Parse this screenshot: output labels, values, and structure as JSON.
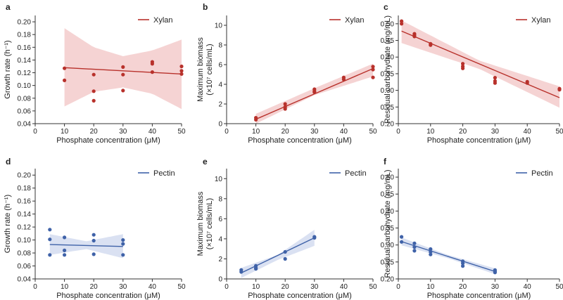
{
  "chart_data": [
    {
      "panel": "a",
      "type": "scatter",
      "series_name": "Xylan",
      "color": "#b8312b",
      "band_color": "#f2c4c4",
      "xlabel": "Phosphate concentration (μM)",
      "ylabel": "Growth rate (h⁻¹)",
      "xlim": [
        0,
        50
      ],
      "ylim": [
        0.04,
        0.21
      ],
      "xticks": [
        "0",
        "10",
        "20",
        "30",
        "40",
        "50"
      ],
      "yticks": [
        "0.04",
        "0.06",
        "0.08",
        "0.10",
        "0.12",
        "0.14",
        "0.16",
        "0.18",
        "0.20"
      ],
      "points": [
        [
          10,
          0.127
        ],
        [
          10,
          0.108
        ],
        [
          20,
          0.117
        ],
        [
          20,
          0.091
        ],
        [
          20,
          0.076
        ],
        [
          30,
          0.129
        ],
        [
          30,
          0.117
        ],
        [
          30,
          0.092
        ],
        [
          40,
          0.137
        ],
        [
          40,
          0.134
        ],
        [
          40,
          0.121
        ],
        [
          50,
          0.13
        ],
        [
          50,
          0.123
        ],
        [
          50,
          0.118
        ]
      ],
      "fit_line": [
        [
          10,
          0.128
        ],
        [
          50,
          0.118
        ]
      ],
      "ci_band": {
        "x": [
          10,
          20,
          30,
          40,
          50
        ],
        "lower": [
          0.067,
          0.09,
          0.097,
          0.087,
          0.063
        ],
        "upper": [
          0.19,
          0.16,
          0.146,
          0.155,
          0.172
        ]
      },
      "legend_position": "top-right"
    },
    {
      "panel": "b",
      "type": "scatter",
      "series_name": "Xylan",
      "color": "#b8312b",
      "band_color": "#f2c4c4",
      "xlabel": "Phosphate concentration (μM)",
      "ylabel": "Maximum biomass",
      "ylabel2": "(×10⁷ cells/mL)",
      "xlim": [
        0,
        50
      ],
      "ylim": [
        0,
        11
      ],
      "xticks": [
        "0",
        "10",
        "20",
        "30",
        "40",
        "50"
      ],
      "yticks": [
        "0",
        "2",
        "4",
        "6",
        "8",
        "10"
      ],
      "points": [
        [
          10,
          0.6
        ],
        [
          10,
          0.4
        ],
        [
          20,
          2.0
        ],
        [
          20,
          1.7
        ],
        [
          20,
          1.5
        ],
        [
          30,
          3.5
        ],
        [
          30,
          3.3
        ],
        [
          30,
          3.2
        ],
        [
          40,
          4.7
        ],
        [
          40,
          4.5
        ],
        [
          50,
          5.8
        ],
        [
          50,
          5.5
        ],
        [
          50,
          4.7
        ]
      ],
      "fit_line": [
        [
          10,
          0.45
        ],
        [
          50,
          5.6
        ]
      ],
      "ci_band": {
        "x": [
          10,
          30,
          50
        ],
        "lower": [
          0.0,
          2.9,
          4.8
        ],
        "upper": [
          1.0,
          3.6,
          6.1
        ]
      },
      "legend_position": "top-right"
    },
    {
      "panel": "c",
      "type": "scatter",
      "series_name": "Xylan",
      "color": "#b8312b",
      "band_color": "#f2c4c4",
      "xlabel": "Phosphate concentration (μM)",
      "ylabel": "Residual carbohydrate (mg/mL)",
      "xlim": [
        0,
        50
      ],
      "ylim": [
        0.2,
        0.525
      ],
      "xticks": [
        "0",
        "10",
        "20",
        "30",
        "40",
        "50"
      ],
      "yticks": [
        "0.20",
        "0.25",
        "0.30",
        "0.35",
        "0.40",
        "0.45",
        "0.50"
      ],
      "points": [
        [
          1,
          0.508
        ],
        [
          1,
          0.5
        ],
        [
          5,
          0.47
        ],
        [
          5,
          0.466
        ],
        [
          5,
          0.462
        ],
        [
          10,
          0.44
        ],
        [
          10,
          0.436
        ],
        [
          20,
          0.38
        ],
        [
          20,
          0.372
        ],
        [
          20,
          0.366
        ],
        [
          30,
          0.338
        ],
        [
          30,
          0.328
        ],
        [
          30,
          0.322
        ],
        [
          40,
          0.326
        ],
        [
          40,
          0.322
        ],
        [
          50,
          0.305
        ],
        [
          50,
          0.302
        ]
      ],
      "fit_line": [
        [
          1,
          0.478
        ],
        [
          50,
          0.278
        ]
      ],
      "ci_band": {
        "x": [
          1,
          25,
          50
        ],
        "lower": [
          0.442,
          0.365,
          0.248
        ],
        "upper": [
          0.51,
          0.39,
          0.312
        ]
      },
      "legend_position": "top-right"
    },
    {
      "panel": "d",
      "type": "scatter",
      "series_name": "Pectin",
      "color": "#3f62a8",
      "band_color": "#cdd7ee",
      "xlabel": "Phosphate concentration (μM)",
      "ylabel": "Growth rate (h⁻¹)",
      "xlim": [
        0,
        50
      ],
      "ylim": [
        0.04,
        0.21
      ],
      "xticks": [
        "0",
        "10",
        "20",
        "30",
        "40",
        "50"
      ],
      "yticks": [
        "0.04",
        "0.06",
        "0.08",
        "0.10",
        "0.12",
        "0.14",
        "0.16",
        "0.18",
        "0.20"
      ],
      "points": [
        [
          5,
          0.116
        ],
        [
          5,
          0.101
        ],
        [
          5,
          0.077
        ],
        [
          10,
          0.104
        ],
        [
          10,
          0.084
        ],
        [
          10,
          0.077
        ],
        [
          20,
          0.108
        ],
        [
          20,
          0.099
        ],
        [
          20,
          0.078
        ],
        [
          30,
          0.1
        ],
        [
          30,
          0.094
        ],
        [
          30,
          0.077
        ]
      ],
      "fit_line": [
        [
          5,
          0.093
        ],
        [
          30,
          0.09
        ]
      ],
      "ci_band": {
        "x": [
          5,
          17.5,
          30
        ],
        "lower": [
          0.077,
          0.086,
          0.072
        ],
        "upper": [
          0.109,
          0.098,
          0.109
        ]
      },
      "legend_position": "top-right"
    },
    {
      "panel": "e",
      "type": "scatter",
      "series_name": "Pectin",
      "color": "#3f62a8",
      "band_color": "#cdd7ee",
      "xlabel": "Phosphate concentration (μM)",
      "ylabel": "Maximum biomass",
      "ylabel2": "(×10⁷ cells/mL)",
      "xlim": [
        0,
        50
      ],
      "ylim": [
        0,
        11
      ],
      "xticks": [
        "0",
        "10",
        "20",
        "30",
        "40",
        "50"
      ],
      "yticks": [
        "0",
        "2",
        "4",
        "6",
        "8",
        "10"
      ],
      "points": [
        [
          5,
          0.9
        ],
        [
          5,
          0.7
        ],
        [
          10,
          1.3
        ],
        [
          10,
          1.1
        ],
        [
          10,
          1.0
        ],
        [
          20,
          2.7
        ],
        [
          20,
          2.0
        ],
        [
          30,
          4.2
        ],
        [
          30,
          4.1
        ]
      ],
      "fit_line": [
        [
          5,
          0.6
        ],
        [
          30,
          4.1
        ]
      ],
      "ci_band": {
        "x": [
          5,
          17.5,
          30
        ],
        "lower": [
          0.1,
          1.9,
          3.3
        ],
        "upper": [
          1.1,
          2.4,
          4.9
        ]
      },
      "legend_position": "top-right"
    },
    {
      "panel": "f",
      "type": "scatter",
      "series_name": "Pectin",
      "color": "#3f62a8",
      "band_color": "#cdd7ee",
      "xlabel": "Phosphate concentration (μM)",
      "ylabel": "Residual carbohydrate (mg/mL)",
      "xlim": [
        0,
        50
      ],
      "ylim": [
        0.2,
        0.525
      ],
      "xticks": [
        "0",
        "10",
        "20",
        "30",
        "40",
        "50"
      ],
      "yticks": [
        "0.20",
        "0.25",
        "0.30",
        "0.35",
        "0.40",
        "0.45",
        "0.50"
      ],
      "points": [
        [
          1,
          0.324
        ],
        [
          1,
          0.309
        ],
        [
          5,
          0.305
        ],
        [
          5,
          0.294
        ],
        [
          5,
          0.283
        ],
        [
          10,
          0.288
        ],
        [
          10,
          0.28
        ],
        [
          10,
          0.272
        ],
        [
          20,
          0.252
        ],
        [
          20,
          0.246
        ],
        [
          20,
          0.238
        ],
        [
          30,
          0.226
        ],
        [
          30,
          0.222
        ],
        [
          30,
          0.219
        ]
      ],
      "fit_line": [
        [
          1,
          0.31
        ],
        [
          30,
          0.222
        ]
      ],
      "ci_band": {
        "x": [
          1,
          15,
          30
        ],
        "lower": [
          0.299,
          0.262,
          0.214
        ],
        "upper": [
          0.322,
          0.272,
          0.231
        ]
      },
      "legend_position": "top-right"
    }
  ]
}
